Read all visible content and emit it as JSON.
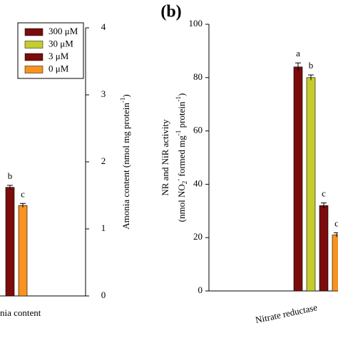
{
  "chart_data": [
    {
      "type": "bar",
      "y2label": "Amonia content (nmol mg protein",
      "y2label_sup": "-1",
      "y2label_end": ")",
      "categories": [
        "nia content"
      ],
      "series": [
        {
          "name": "300 μM",
          "color": "#7b0c0c",
          "values": [
            null
          ],
          "axis": "y2"
        },
        {
          "name": "30 μM",
          "color": "#c4cc2e",
          "values": [
            null
          ],
          "axis": "y2"
        },
        {
          "name": "3 μM",
          "color": "#7b0c0c",
          "values": [
            1.62
          ],
          "value_labels": [
            "b"
          ],
          "errors": [
            0.03
          ],
          "axis": "y2"
        },
        {
          "name": "0 μM",
          "color": "#f7931e",
          "values": [
            1.35
          ],
          "value_labels": [
            "c"
          ],
          "errors": [
            0.03
          ],
          "axis": "y2"
        }
      ],
      "y2lim": [
        0,
        4
      ],
      "y2ticks": [
        0,
        1,
        2,
        3,
        4
      ]
    },
    {
      "type": "bar",
      "title": "(b)",
      "ylabel": "NR and NiR activity",
      "ylabel2": [
        "(nmol NO",
        "2",
        "-",
        " formed mg",
        "-1",
        " protein",
        "-1",
        ")"
      ],
      "categories": [
        "Nitrate reductase"
      ],
      "series": [
        {
          "name": "300 μM",
          "color": "#7b0c0c",
          "values": [
            84
          ],
          "value_labels": [
            "a"
          ],
          "errors": [
            1.5
          ]
        },
        {
          "name": "30 μM",
          "color": "#c4cc2e",
          "values": [
            80
          ],
          "value_labels": [
            "b"
          ],
          "errors": [
            1
          ]
        },
        {
          "name": "3 μM",
          "color": "#7b0c0c",
          "values": [
            32
          ],
          "value_labels": [
            "c"
          ],
          "errors": [
            1
          ]
        },
        {
          "name": "0 μM",
          "color": "#f7931e",
          "values": [
            21
          ],
          "value_labels": [
            "c"
          ],
          "errors": [
            0.8
          ]
        }
      ],
      "ylim": [
        0,
        100
      ],
      "yticks": [
        0,
        20,
        40,
        60,
        80,
        100
      ]
    }
  ]
}
